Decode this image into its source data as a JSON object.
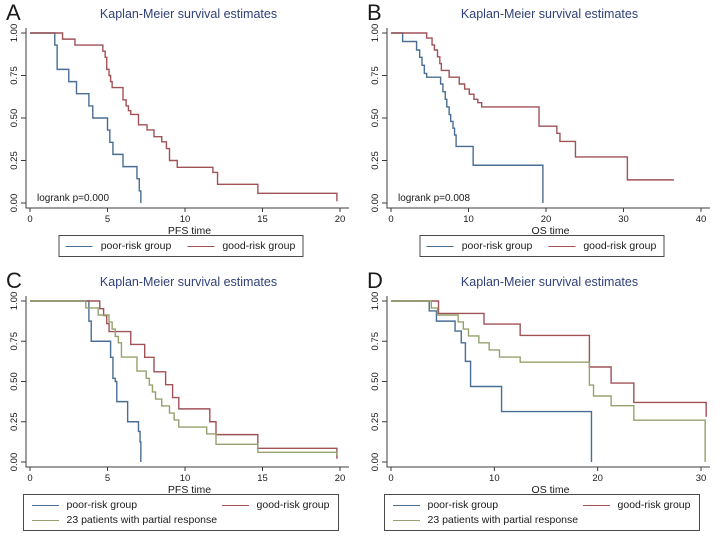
{
  "figure": {
    "title_color": "#31417a",
    "background": "#ffffff",
    "accent_colors": {
      "poor_risk": "#4a6e93",
      "good_risk": "#a05257",
      "partial_response": "#95a26e"
    }
  },
  "chart_data": [
    {
      "type": "line",
      "panel_label": "A",
      "title": "Kaplan-Meier survival estimates",
      "xlabel": "PFS time",
      "ylabel": "",
      "xlim": [
        0,
        20
      ],
      "ylim": [
        0,
        1
      ],
      "xticks": [
        0,
        5,
        10,
        15,
        20
      ],
      "yticks": [
        0,
        0.25,
        0.5,
        0.75,
        1
      ],
      "ytick_labels": [
        "0.00",
        "0.25",
        "0.50",
        "0.75",
        "1.00"
      ],
      "annotation": "logrank p=0.000",
      "grid": false,
      "legend_position": "bottom",
      "series": [
        {
          "name": "poor-risk group",
          "color": "#4a6e93",
          "start": 1.0,
          "end": 7.15,
          "events": [
            [
              1.6,
              0.929
            ],
            [
              1.75,
              0.786
            ],
            [
              2.5,
              0.714
            ],
            [
              3.0,
              0.643
            ],
            [
              3.8,
              0.571
            ],
            [
              4.05,
              0.5
            ],
            [
              5.0,
              0.429
            ],
            [
              5.15,
              0.357
            ],
            [
              5.35,
              0.286
            ],
            [
              6.0,
              0.214
            ],
            [
              6.9,
              0.143
            ],
            [
              7.05,
              0.071
            ],
            [
              7.15,
              0
            ]
          ]
        },
        {
          "name": "good-risk group",
          "color": "#a05257",
          "start": 1.0,
          "end": 19.8,
          "events": [
            [
              2.1,
              0.964
            ],
            [
              2.9,
              0.929
            ],
            [
              4.7,
              0.893
            ],
            [
              4.85,
              0.857
            ],
            [
              4.95,
              0.786
            ],
            [
              5.1,
              0.75
            ],
            [
              5.2,
              0.714
            ],
            [
              5.3,
              0.679
            ],
            [
              6.0,
              0.607
            ],
            [
              6.2,
              0.571
            ],
            [
              6.35,
              0.543
            ],
            [
              6.5,
              0.521
            ],
            [
              7.0,
              0.46
            ],
            [
              7.55,
              0.43
            ],
            [
              8.0,
              0.39
            ],
            [
              8.5,
              0.36
            ],
            [
              8.8,
              0.32
            ],
            [
              9.0,
              0.25
            ],
            [
              9.5,
              0.21
            ],
            [
              11.8,
              0.18
            ],
            [
              12.1,
              0.11
            ],
            [
              14.7,
              0.057
            ],
            [
              19.8,
              0.01
            ]
          ]
        }
      ]
    },
    {
      "type": "line",
      "panel_label": "B",
      "title": "Kaplan-Meier survival estimates",
      "xlabel": "OS time",
      "ylabel": "",
      "xlim": [
        0,
        40
      ],
      "ylim": [
        0,
        1
      ],
      "xticks": [
        0,
        10,
        20,
        30,
        40
      ],
      "yticks": [
        0,
        0.25,
        0.5,
        0.75,
        1
      ],
      "ytick_labels": [
        "0.00",
        "0.25",
        "0.50",
        "0.75",
        "1.00"
      ],
      "annotation": "logrank p=0.008",
      "grid": false,
      "legend_position": "bottom",
      "series": [
        {
          "name": "poor-risk group",
          "color": "#4a6e93",
          "start": 1.0,
          "end": 19.6,
          "events": [
            [
              1.5,
              0.95
            ],
            [
              3.3,
              0.9
            ],
            [
              3.7,
              0.857
            ],
            [
              4.0,
              0.81
            ],
            [
              4.3,
              0.762
            ],
            [
              4.6,
              0.74
            ],
            [
              6.4,
              0.7
            ],
            [
              6.7,
              0.655
            ],
            [
              7.0,
              0.61
            ],
            [
              7.2,
              0.565
            ],
            [
              7.5,
              0.52
            ],
            [
              7.7,
              0.48
            ],
            [
              8.0,
              0.44
            ],
            [
              8.2,
              0.4
            ],
            [
              8.4,
              0.333
            ],
            [
              10.6,
              0.222
            ],
            [
              19.6,
              0
            ]
          ]
        },
        {
          "name": "good-risk group",
          "color": "#a05257",
          "start": 1.0,
          "end": 36.5,
          "events": [
            [
              4.6,
              0.97
            ],
            [
              5.3,
              0.93
            ],
            [
              5.6,
              0.9
            ],
            [
              6.0,
              0.86
            ],
            [
              6.3,
              0.82
            ],
            [
              6.5,
              0.78
            ],
            [
              7.5,
              0.74
            ],
            [
              8.8,
              0.7
            ],
            [
              9.5,
              0.67
            ],
            [
              10.1,
              0.64
            ],
            [
              10.7,
              0.61
            ],
            [
              11.2,
              0.59
            ],
            [
              11.7,
              0.565
            ],
            [
              19.1,
              0.452
            ],
            [
              21.4,
              0.41
            ],
            [
              21.8,
              0.362
            ],
            [
              23.8,
              0.271
            ],
            [
              30.5,
              0.136
            ]
          ]
        }
      ]
    },
    {
      "type": "line",
      "panel_label": "C",
      "title": "Kaplan-Meier survival estimates",
      "xlabel": "PFS time",
      "ylabel": "",
      "xlim": [
        0,
        20
      ],
      "ylim": [
        0,
        1
      ],
      "xticks": [
        0,
        5,
        10,
        15,
        20
      ],
      "yticks": [
        0,
        0.25,
        0.5,
        0.75,
        1
      ],
      "ytick_labels": [
        "0.00",
        "0.25",
        "0.50",
        "0.75",
        "1.00"
      ],
      "annotation": "",
      "grid": false,
      "legend_position": "bottom",
      "series": [
        {
          "name": "poor-risk group",
          "color": "#4a6e93",
          "start": 1.0,
          "end": 7.15,
          "events": [
            [
              3.8,
              0.875
            ],
            [
              3.95,
              0.75
            ],
            [
              5.2,
              0.65
            ],
            [
              5.35,
              0.52
            ],
            [
              5.5,
              0.5
            ],
            [
              5.6,
              0.375
            ],
            [
              6.3,
              0.25
            ],
            [
              7.0,
              0.19
            ],
            [
              7.1,
              0.125
            ],
            [
              7.15,
              0
            ]
          ]
        },
        {
          "name": "good-risk group",
          "color": "#a05257",
          "start": 1.0,
          "end": 19.8,
          "events": [
            [
              4.5,
              0.952
            ],
            [
              4.75,
              0.91
            ],
            [
              4.95,
              0.86
            ],
            [
              5.1,
              0.81
            ],
            [
              6.5,
              0.73
            ],
            [
              7.4,
              0.65
            ],
            [
              8.0,
              0.56
            ],
            [
              8.75,
              0.48
            ],
            [
              9.2,
              0.4
            ],
            [
              9.6,
              0.33
            ],
            [
              11.6,
              0.25
            ],
            [
              12.0,
              0.17
            ],
            [
              14.7,
              0.085
            ],
            [
              19.8,
              0.02
            ]
          ]
        },
        {
          "name": "23 patients with partial response",
          "color": "#95a26e",
          "start": 1.0,
          "end": 19.8,
          "events": [
            [
              3.6,
              0.957
            ],
            [
              4.4,
              0.913
            ],
            [
              5.1,
              0.87
            ],
            [
              5.3,
              0.826
            ],
            [
              5.5,
              0.78
            ],
            [
              5.7,
              0.74
            ],
            [
              5.9,
              0.652
            ],
            [
              6.9,
              0.565
            ],
            [
              7.5,
              0.52
            ],
            [
              7.7,
              0.478
            ],
            [
              7.9,
              0.435
            ],
            [
              8.1,
              0.391
            ],
            [
              8.5,
              0.348
            ],
            [
              9.0,
              0.304
            ],
            [
              9.3,
              0.261
            ],
            [
              9.6,
              0.217
            ],
            [
              11.4,
              0.174
            ],
            [
              12.0,
              0.11
            ],
            [
              14.7,
              0.06
            ],
            [
              19.8,
              0.04
            ]
          ]
        }
      ]
    },
    {
      "type": "line",
      "panel_label": "D",
      "title": "Kaplan-Meier survival estimates",
      "xlabel": "OS time",
      "ylabel": "",
      "xlim": [
        0,
        30
      ],
      "ylim": [
        0,
        1
      ],
      "xticks": [
        0,
        10,
        20,
        30
      ],
      "yticks": [
        0,
        0.25,
        0.5,
        0.75,
        1
      ],
      "ytick_labels": [
        "0.00",
        "0.25",
        "0.50",
        "0.75",
        "1.00"
      ],
      "annotation": "",
      "grid": false,
      "legend_position": "bottom",
      "series": [
        {
          "name": "poor-risk group",
          "color": "#4a6e93",
          "start": 1.0,
          "end": 19.4,
          "events": [
            [
              3.7,
              0.938
            ],
            [
              4.4,
              0.875
            ],
            [
              6.2,
              0.813
            ],
            [
              6.8,
              0.74
            ],
            [
              7.2,
              0.625
            ],
            [
              7.7,
              0.469
            ],
            [
              10.7,
              0.313
            ],
            [
              19.4,
              0
            ]
          ]
        },
        {
          "name": "good-risk group",
          "color": "#a05257",
          "start": 1.0,
          "end": 30.5,
          "events": [
            [
              4.6,
              0.923
            ],
            [
              9.0,
              0.857
            ],
            [
              12.5,
              0.786
            ],
            [
              19.2,
              0.59
            ],
            [
              21.3,
              0.49
            ],
            [
              23.5,
              0.37
            ],
            [
              30.5,
              0.28
            ]
          ]
        },
        {
          "name": "23 patients with partial response",
          "color": "#95a26e",
          "start": 1.0,
          "end": 30.4,
          "events": [
            [
              3.9,
              0.957
            ],
            [
              4.5,
              0.913
            ],
            [
              6.5,
              0.87
            ],
            [
              7.0,
              0.826
            ],
            [
              7.5,
              0.783
            ],
            [
              8.5,
              0.74
            ],
            [
              9.5,
              0.696
            ],
            [
              10.5,
              0.652
            ],
            [
              12.5,
              0.62
            ],
            [
              19.2,
              0.478
            ],
            [
              19.6,
              0.41
            ],
            [
              21.3,
              0.35
            ],
            [
              23.5,
              0.26
            ],
            [
              30.4,
              0
            ]
          ]
        }
      ]
    }
  ]
}
